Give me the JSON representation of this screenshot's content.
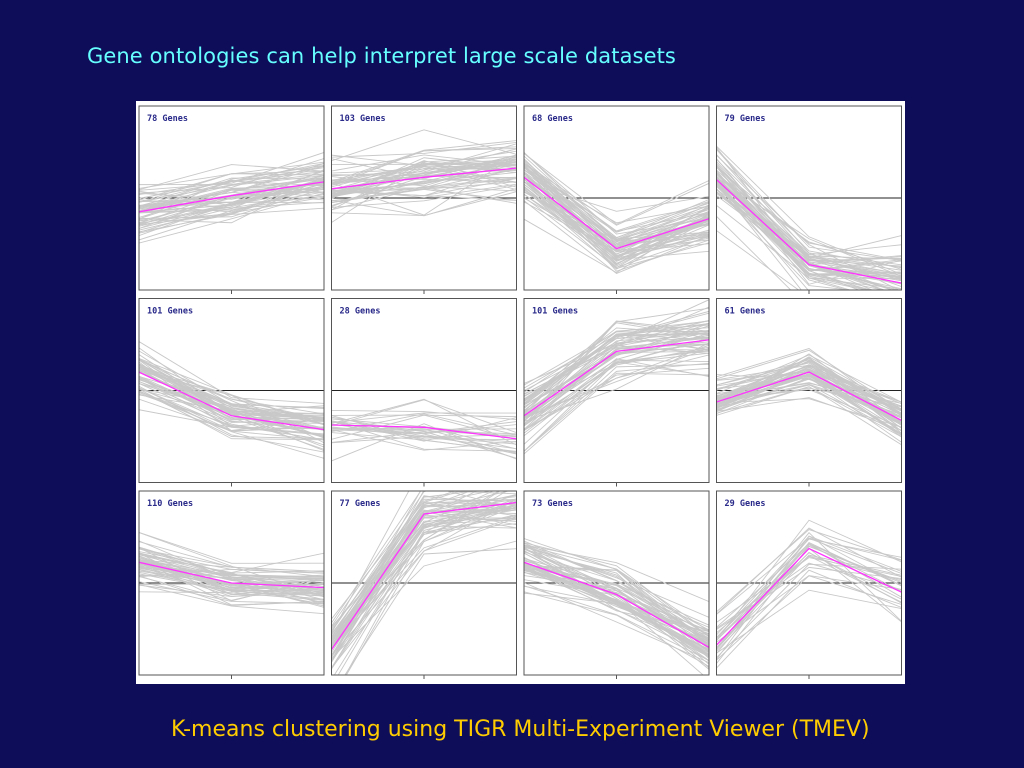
{
  "slide": {
    "title": "Gene ontologies can help interpret large scale datasets",
    "caption": "K-means clustering using TIGR Multi-Experiment Viewer (TMEV)"
  },
  "colors": {
    "background": "#0d0d5a",
    "title": "#66ffff",
    "caption": "#ffcc00",
    "member_line": "#c8c8c8",
    "centroid_line": "#ff33ff",
    "panel_label": "#2a2a8a"
  },
  "chart_data": {
    "type": "line",
    "grid": false,
    "layout": "3x4 small multiples",
    "x": [
      1,
      2,
      3
    ],
    "ylim": [
      -2,
      2
    ],
    "panels": [
      {
        "label": "78 Genes",
        "n": 78,
        "centroid": [
          -0.3,
          0.05,
          0.35
        ],
        "spread": 0.35
      },
      {
        "label": "103 Genes",
        "n": 103,
        "centroid": [
          0.2,
          0.45,
          0.65
        ],
        "spread": 0.4
      },
      {
        "label": "68 Genes",
        "n": 68,
        "centroid": [
          0.45,
          -1.1,
          -0.45
        ],
        "spread": 0.35
      },
      {
        "label": "79 Genes",
        "n": 79,
        "centroid": [
          0.4,
          -1.45,
          -1.85
        ],
        "spread": 0.4
      },
      {
        "label": "101 Genes",
        "n": 101,
        "centroid": [
          0.4,
          -0.55,
          -0.85
        ],
        "spread": 0.3
      },
      {
        "label": "28 Genes",
        "n": 28,
        "centroid": [
          -0.75,
          -0.8,
          -1.05
        ],
        "spread": 0.45
      },
      {
        "label": "101 Genes",
        "n": 101,
        "centroid": [
          -0.55,
          0.85,
          1.1
        ],
        "spread": 0.4
      },
      {
        "label": "61 Genes",
        "n": 61,
        "centroid": [
          -0.25,
          0.4,
          -0.65
        ],
        "spread": 0.3
      },
      {
        "label": "110 Genes",
        "n": 110,
        "centroid": [
          0.45,
          0.0,
          -0.1
        ],
        "spread": 0.3
      },
      {
        "label": "77 Genes",
        "n": 77,
        "centroid": [
          -1.45,
          1.5,
          1.75
        ],
        "spread": 0.45
      },
      {
        "label": "73 Genes",
        "n": 73,
        "centroid": [
          0.45,
          -0.25,
          -1.4
        ],
        "spread": 0.35
      },
      {
        "label": "29 Genes",
        "n": 29,
        "centroid": [
          -1.35,
          0.75,
          -0.2
        ],
        "spread": 0.45
      }
    ]
  }
}
